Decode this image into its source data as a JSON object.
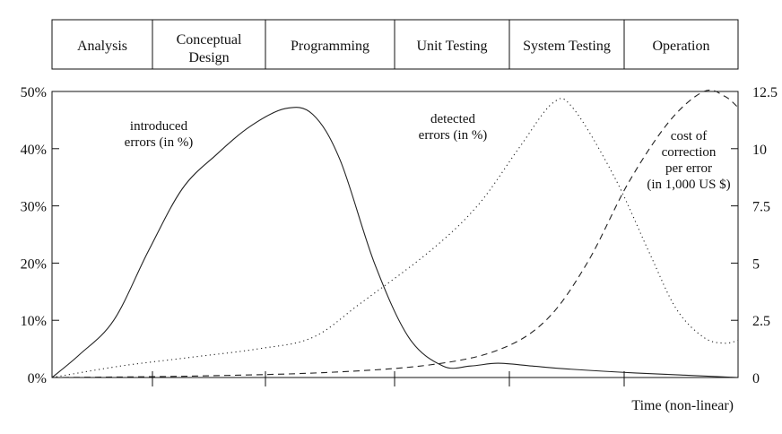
{
  "chart_data": {
    "type": "line",
    "phases": [
      "Analysis",
      "Conceptual Design",
      "Programming",
      "Unit Testing",
      "System Testing",
      "Operation"
    ],
    "xlabel": "Time (non-linear)",
    "left_axis": {
      "ticks": [
        "0%",
        "10%",
        "20%",
        "30%",
        "40%",
        "50%"
      ],
      "ylim": [
        0,
        50
      ]
    },
    "right_axis": {
      "ticks": [
        "0",
        "2.5",
        "5",
        "7.5",
        "10",
        "12.5"
      ],
      "ylim": [
        0,
        12.5
      ]
    },
    "grid": false,
    "series": [
      {
        "key": "introduced",
        "label": [
          "introduced",
          "errors (in %)"
        ],
        "axis": "left",
        "dash": "solid",
        "points": [
          [
            0,
            0
          ],
          [
            4,
            4
          ],
          [
            9,
            10
          ],
          [
            14,
            22
          ],
          [
            19,
            33
          ],
          [
            24,
            39
          ],
          [
            29,
            44
          ],
          [
            34,
            47
          ],
          [
            38,
            46
          ],
          [
            42,
            38
          ],
          [
            47,
            20
          ],
          [
            52,
            7
          ],
          [
            57,
            2
          ],
          [
            61,
            2
          ],
          [
            65,
            2.5
          ],
          [
            70,
            2
          ],
          [
            75,
            1.5
          ],
          [
            85,
            0.8
          ],
          [
            100,
            0
          ]
        ]
      },
      {
        "key": "detected",
        "label": [
          "detected",
          "errors (in %)"
        ],
        "axis": "left",
        "dash": "dotted",
        "points": [
          [
            0,
            0
          ],
          [
            10,
            2
          ],
          [
            20,
            3.5
          ],
          [
            30,
            5
          ],
          [
            38,
            7
          ],
          [
            45,
            13
          ],
          [
            55,
            22
          ],
          [
            62,
            30
          ],
          [
            68,
            40
          ],
          [
            73,
            48
          ],
          [
            76,
            47
          ],
          [
            82,
            35
          ],
          [
            87,
            22
          ],
          [
            91,
            12
          ],
          [
            95,
            7
          ],
          [
            98,
            6
          ],
          [
            100,
            6.5
          ]
        ]
      },
      {
        "key": "cost",
        "label": [
          "cost of",
          "correction",
          "per error",
          "(in 1,000 US $)"
        ],
        "axis": "right",
        "dash": "dashed",
        "points": [
          [
            0,
            0
          ],
          [
            20,
            0.06
          ],
          [
            40,
            0.22
          ],
          [
            55,
            0.55
          ],
          [
            65,
            1.2
          ],
          [
            72,
            2.5
          ],
          [
            78,
            5
          ],
          [
            84,
            8.5
          ],
          [
            90,
            11.2
          ],
          [
            95,
            12.5
          ],
          [
            98,
            12.3
          ],
          [
            100,
            11.8
          ]
        ]
      }
    ]
  }
}
